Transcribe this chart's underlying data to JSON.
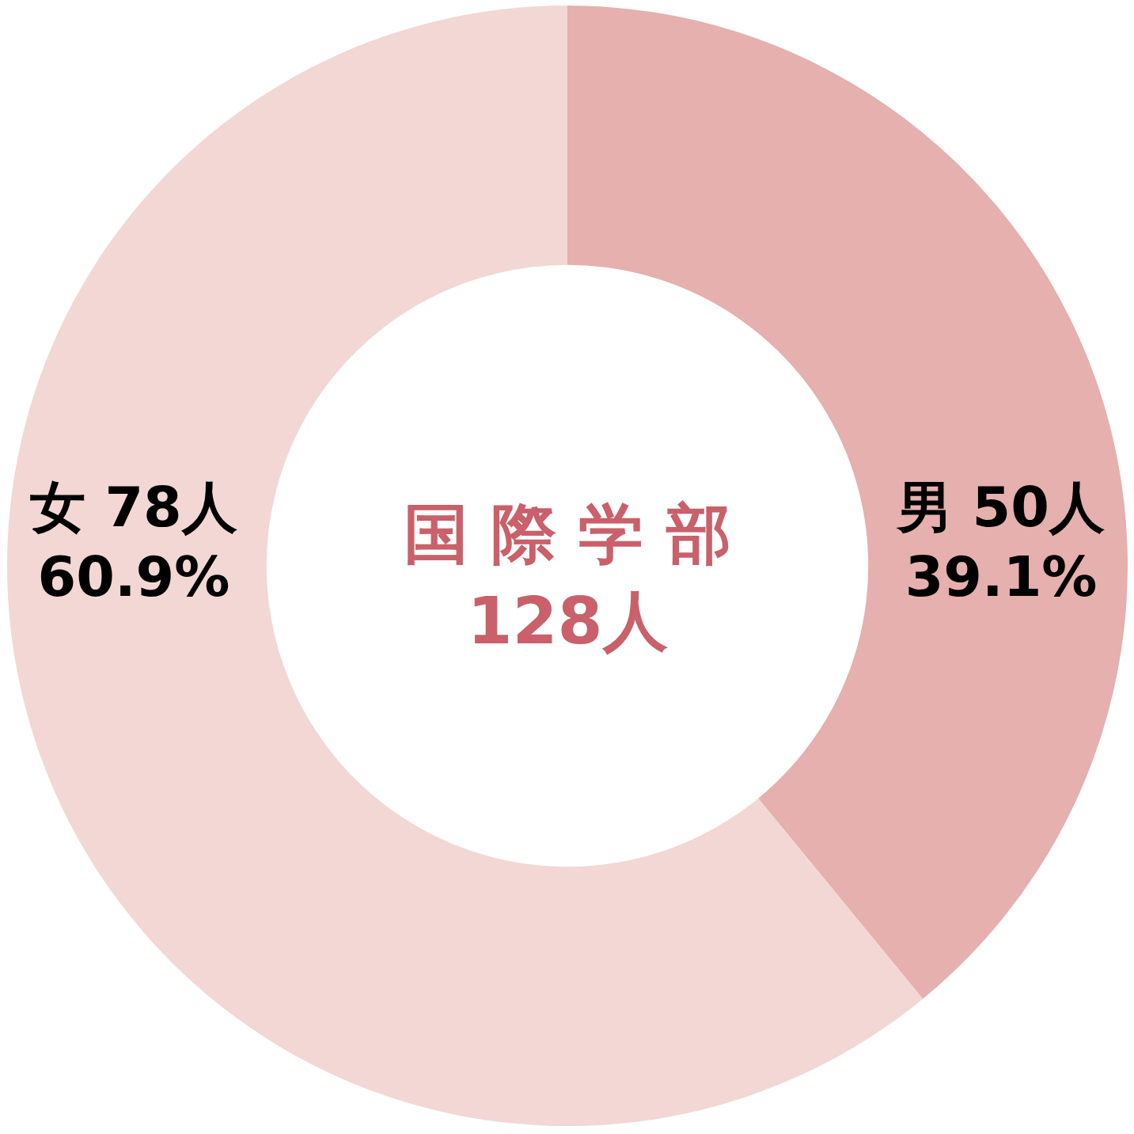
{
  "chart_data": {
    "type": "donut",
    "title": "国 際 学 部",
    "subtitle": "128人",
    "categories": [
      "男",
      "女"
    ],
    "values": [
      50,
      78
    ],
    "colors": [
      "#e5b0ae",
      "#f2d7d4"
    ],
    "value_labels": [
      "50人\n39.1%",
      "78人\n60.9%"
    ]
  }
}
